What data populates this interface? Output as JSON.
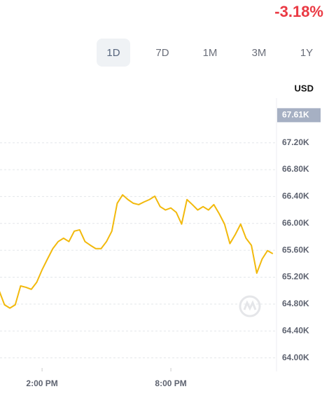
{
  "header": {
    "change": "-3.18%"
  },
  "tabs": [
    "1D",
    "7D",
    "1M",
    "3M",
    "1Y"
  ],
  "chart_data": {
    "type": "line",
    "y_unit": "USD",
    "x": [
      12,
      12.25,
      12.5,
      12.75,
      13,
      13.25,
      13.5,
      13.75,
      14,
      14.25,
      14.5,
      14.75,
      15,
      15.25,
      15.5,
      15.75,
      16,
      16.25,
      16.5,
      16.75,
      17,
      17.25,
      17.5,
      17.75,
      18,
      18.25,
      18.5,
      18.75,
      19,
      19.25,
      19.5,
      19.75,
      20,
      20.25,
      20.5,
      20.75,
      21,
      21.25,
      21.5,
      21.75,
      22,
      22.25,
      22.5,
      22.75,
      23,
      23.25,
      23.5,
      23.75,
      24,
      24.25,
      24.5,
      24.75
    ],
    "series": [
      {
        "color": "#f2b90c",
        "values": [
          65000,
          64790,
          64740,
          64790,
          65070,
          65050,
          65020,
          65125,
          65310,
          65470,
          65625,
          65730,
          65780,
          65730,
          65885,
          65905,
          65730,
          65675,
          65625,
          65625,
          65730,
          65885,
          66300,
          66425,
          66355,
          66300,
          66280,
          66320,
          66355,
          66405,
          66250,
          66200,
          66230,
          66165,
          65990,
          66355,
          66280,
          66200,
          66250,
          66200,
          66280,
          66145,
          65990,
          65700,
          65835,
          65990,
          65780,
          65675,
          65260,
          65470,
          65595,
          65550
        ]
      }
    ],
    "xlim": [
      12.04,
      24.92
    ],
    "xticks": [
      {
        "value": 14,
        "label": "2:00 PM"
      },
      {
        "value": 20,
        "label": "8:00 PM"
      }
    ],
    "ylim": [
      63850,
      67760
    ],
    "yticks": [
      {
        "value": 64000,
        "label": "64.00K"
      },
      {
        "value": 64400,
        "label": "64.40K"
      },
      {
        "value": 64800,
        "label": "64.80K"
      },
      {
        "value": 65200,
        "label": "65.20K"
      },
      {
        "value": 65600,
        "label": "65.60K"
      },
      {
        "value": 66000,
        "label": "66.00K"
      },
      {
        "value": 66400,
        "label": "66.40K"
      },
      {
        "value": 66800,
        "label": "66.80K"
      },
      {
        "value": 67200,
        "label": "67.20K"
      }
    ],
    "price_marker": {
      "value": 67610,
      "label": "67.61K"
    },
    "grid": true
  }
}
